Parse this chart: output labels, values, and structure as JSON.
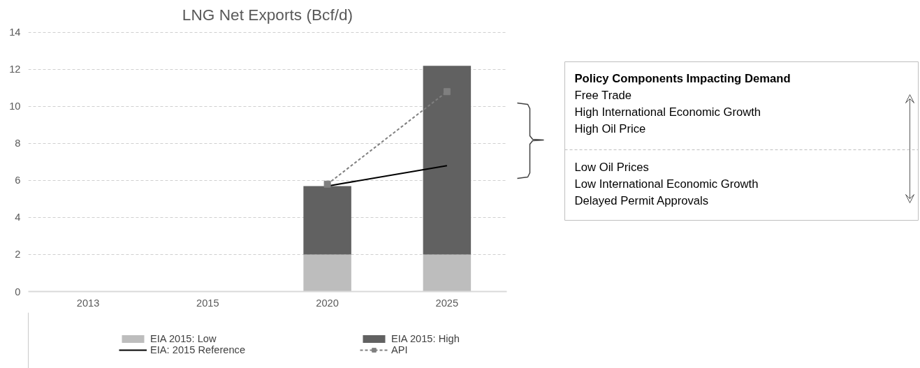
{
  "chart_data": {
    "type": "bar",
    "title": "LNG Net Exports (Bcf/d)",
    "categories": [
      "2013",
      "2015",
      "2020",
      "2025"
    ],
    "stacked": true,
    "series": [
      {
        "name": "EIA 2015: Low",
        "color": "#bdbdbd",
        "values": [
          null,
          null,
          2.0,
          2.0
        ]
      },
      {
        "name": "EIA 2015: High",
        "color": "#616161",
        "values": [
          null,
          null,
          3.7,
          10.2
        ]
      },
      {
        "name": "EIA: 2015 Reference",
        "type": "line",
        "color": "#000000",
        "line_style": "solid",
        "marker": "none",
        "values": [
          null,
          null,
          5.7,
          6.8
        ]
      },
      {
        "name": "API",
        "type": "line",
        "color": "#7f7f7f",
        "line_style": "dashed",
        "marker": "square",
        "values": [
          null,
          null,
          5.8,
          10.8
        ]
      }
    ],
    "ylim": [
      0,
      14
    ],
    "yticks": [
      0,
      2,
      4,
      6,
      8,
      10,
      12,
      14
    ],
    "grid": "y",
    "legend": "bottom",
    "annotations": [
      "Policy Components Impacting Demand",
      "Free Trade",
      "High International Economic Growth",
      "High Oil Price",
      "Low Oil Prices",
      "Low International Economic Growth",
      "Delayed Permit Approvals"
    ]
  }
}
